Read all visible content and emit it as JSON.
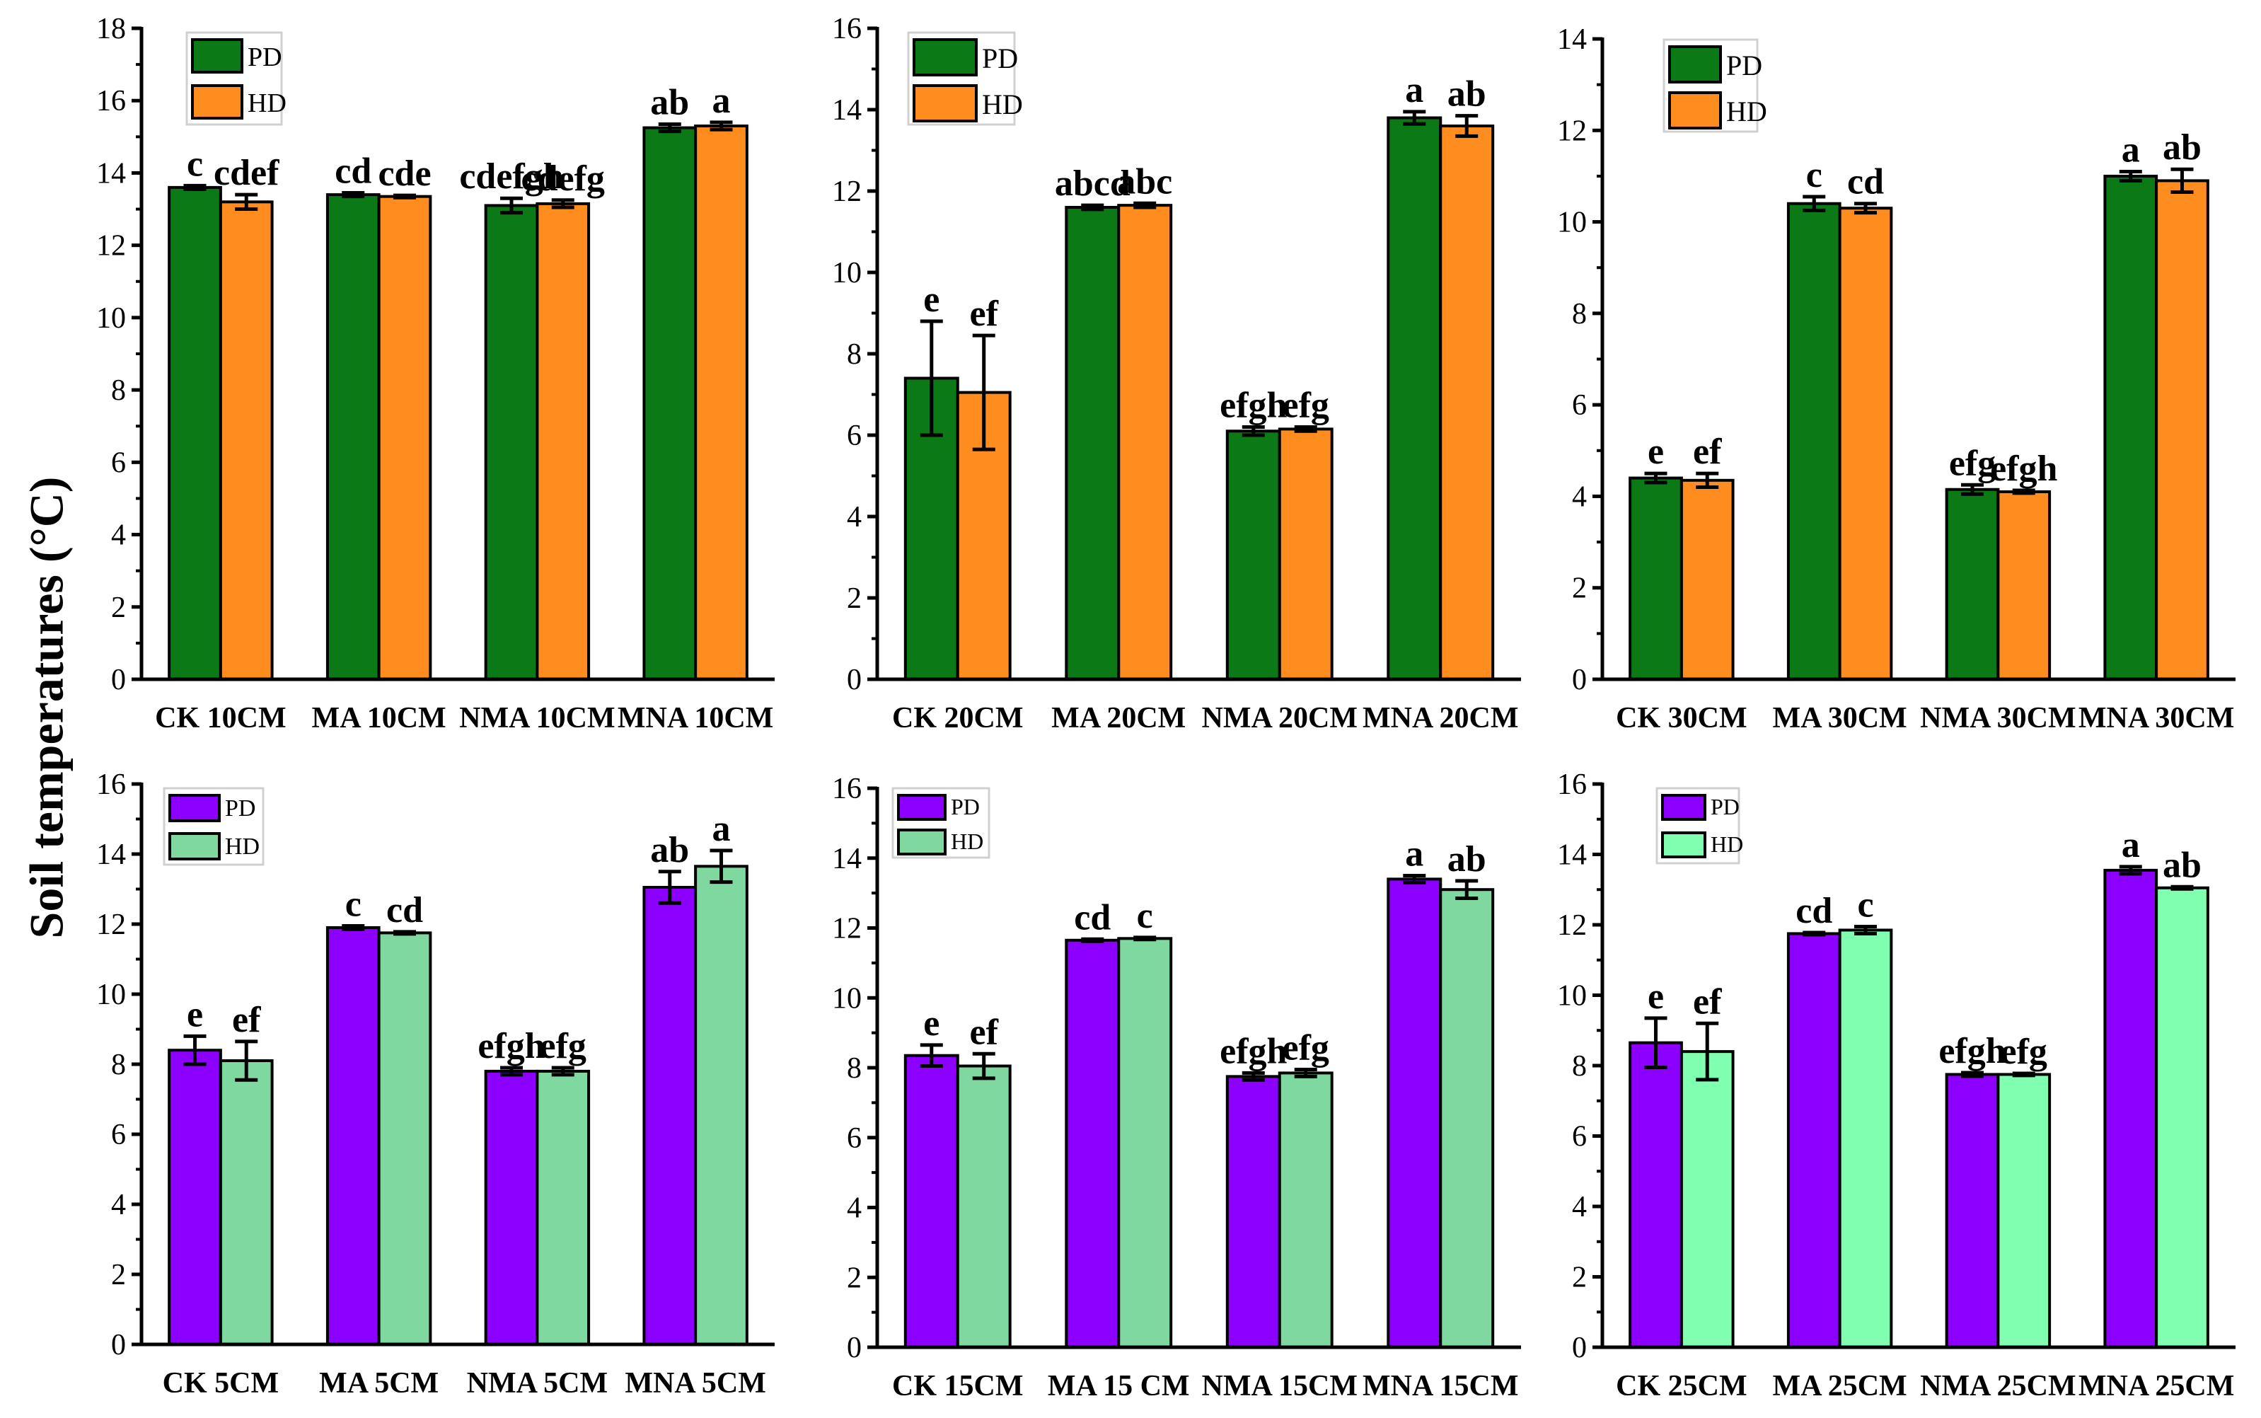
{
  "y_axis_title": "Soil temperatures (°C)",
  "colors": {
    "pd_top": "#0b7a16",
    "hd_top": "#ff8c1f",
    "pd_bottom": "#8b00ff",
    "hd_bottom": "#7fd8a0",
    "hd_bottom_alt": "#80ffb0"
  },
  "chart_data": [
    {
      "type": "bar",
      "categories": [
        "CK 10CM",
        "MA 10CM",
        "NMA 10CM",
        "MNA 10CM"
      ],
      "ylim": [
        0,
        18
      ],
      "yticks": [
        "0",
        "2",
        "4",
        "6",
        "8",
        "10",
        "12",
        "14",
        "16",
        "18"
      ],
      "legend": [
        "PD",
        "HD"
      ],
      "legend_position": "top-left",
      "series": [
        {
          "name": "PD",
          "color": "#0b7a16",
          "values": [
            13.6,
            13.4,
            13.1,
            15.25
          ],
          "errors": [
            0.05,
            0.05,
            0.2,
            0.1
          ],
          "labels": [
            "c",
            "cd",
            "cdefgh",
            "ab"
          ]
        },
        {
          "name": "HD",
          "color": "#ff8c1f",
          "values": [
            13.2,
            13.35,
            13.15,
            15.3
          ],
          "errors": [
            0.2,
            0.03,
            0.1,
            0.1
          ],
          "labels": [
            "cdef",
            "cde",
            "cdefg",
            "a"
          ]
        }
      ]
    },
    {
      "type": "bar",
      "categories": [
        "CK 20CM",
        "MA 20CM",
        "NMA 20CM",
        "MNA 20CM"
      ],
      "ylim": [
        0,
        16
      ],
      "yticks": [
        "0",
        "2",
        "4",
        "6",
        "8",
        "10",
        "12",
        "14",
        "16"
      ],
      "legend": [
        "PD",
        "HD"
      ],
      "legend_position": "top-left",
      "series": [
        {
          "name": "PD",
          "color": "#0b7a16",
          "values": [
            7.4,
            11.6,
            6.1,
            13.8
          ],
          "errors": [
            1.4,
            0.05,
            0.1,
            0.15
          ],
          "labels": [
            "e",
            "abcd",
            "efgh",
            "a"
          ]
        },
        {
          "name": "HD",
          "color": "#ff8c1f",
          "values": [
            7.05,
            11.65,
            6.15,
            13.6
          ],
          "errors": [
            1.4,
            0.05,
            0.05,
            0.25
          ],
          "labels": [
            "ef",
            "abc",
            "efg",
            "ab"
          ]
        }
      ]
    },
    {
      "type": "bar",
      "categories": [
        "CK 30CM",
        "MA 30CM",
        "NMA 30CM",
        "MNA 30CM"
      ],
      "ylim": [
        0,
        14
      ],
      "yticks": [
        "0",
        "2",
        "4",
        "6",
        "8",
        "10",
        "12",
        "14"
      ],
      "legend": [
        "PD",
        "HD"
      ],
      "legend_position": "top-left",
      "series": [
        {
          "name": "PD",
          "color": "#0b7a16",
          "values": [
            4.4,
            10.4,
            4.15,
            11.0
          ],
          "errors": [
            0.1,
            0.15,
            0.1,
            0.1
          ],
          "labels": [
            "e",
            "c",
            "efg",
            "a"
          ]
        },
        {
          "name": "HD",
          "color": "#ff8c1f",
          "values": [
            4.35,
            10.3,
            4.1,
            10.9
          ],
          "errors": [
            0.15,
            0.1,
            0.03,
            0.25
          ],
          "labels": [
            "ef",
            "cd",
            "efgh",
            "ab"
          ]
        }
      ]
    },
    {
      "type": "bar",
      "categories": [
        "CK  5CM",
        "MA  5CM",
        "NMA 5CM",
        "MNA 5CM"
      ],
      "ylim": [
        0,
        16
      ],
      "yticks": [
        "0",
        "2",
        "4",
        "6",
        "8",
        "10",
        "12",
        "14",
        "16"
      ],
      "legend": [
        "PD",
        "HD"
      ],
      "legend_position": "top-left",
      "series": [
        {
          "name": "PD",
          "color": "#8b00ff",
          "values": [
            8.4,
            11.9,
            7.8,
            13.05
          ],
          "errors": [
            0.4,
            0.05,
            0.1,
            0.45
          ],
          "labels": [
            "e",
            "c",
            "efgh",
            "ab"
          ]
        },
        {
          "name": "HD",
          "color": "#7fd8a0",
          "values": [
            8.1,
            11.75,
            7.8,
            13.65
          ],
          "errors": [
            0.55,
            0.03,
            0.1,
            0.45
          ],
          "labels": [
            "ef",
            "cd",
            "efg",
            "a"
          ]
        }
      ]
    },
    {
      "type": "bar",
      "categories": [
        "CK 15CM",
        "MA 15 CM",
        "NMA 15CM",
        "MNA 15CM"
      ],
      "ylim": [
        0,
        16
      ],
      "yticks": [
        "0",
        "2",
        "4",
        "6",
        "8",
        "10",
        "12",
        "14",
        "16"
      ],
      "legend": [
        "PD",
        "HD"
      ],
      "legend_position": "top-left",
      "series": [
        {
          "name": "PD",
          "color": "#8b00ff",
          "values": [
            8.35,
            11.65,
            7.75,
            13.4
          ],
          "errors": [
            0.3,
            0.03,
            0.1,
            0.1
          ],
          "labels": [
            "e",
            "cd",
            "efgh",
            "a"
          ]
        },
        {
          "name": "HD",
          "color": "#7fd8a0",
          "values": [
            8.05,
            11.7,
            7.85,
            13.1
          ],
          "errors": [
            0.35,
            0.03,
            0.1,
            0.25
          ],
          "labels": [
            "ef",
            "c",
            "efg",
            "ab"
          ]
        }
      ]
    },
    {
      "type": "bar",
      "categories": [
        "CK 25CM",
        "MA 25CM",
        "NMA 25CM",
        "MNA 25CM"
      ],
      "ylim": [
        0,
        16
      ],
      "yticks": [
        "0",
        "2",
        "4",
        "6",
        "8",
        "10",
        "12",
        "14",
        "16"
      ],
      "legend": [
        "PD",
        "HD"
      ],
      "legend_position": "top-left",
      "series": [
        {
          "name": "PD",
          "color": "#8b00ff",
          "values": [
            8.65,
            11.75,
            7.75,
            13.55
          ],
          "errors": [
            0.7,
            0.03,
            0.05,
            0.1
          ],
          "labels": [
            "e",
            "cd",
            "efgh",
            "a"
          ]
        },
        {
          "name": "HD",
          "color": "#80ffb0",
          "values": [
            8.4,
            11.85,
            7.75,
            13.05
          ],
          "errors": [
            0.8,
            0.1,
            0.03,
            0.03
          ],
          "labels": [
            "ef",
            "c",
            "efg",
            "ab"
          ]
        }
      ]
    }
  ]
}
